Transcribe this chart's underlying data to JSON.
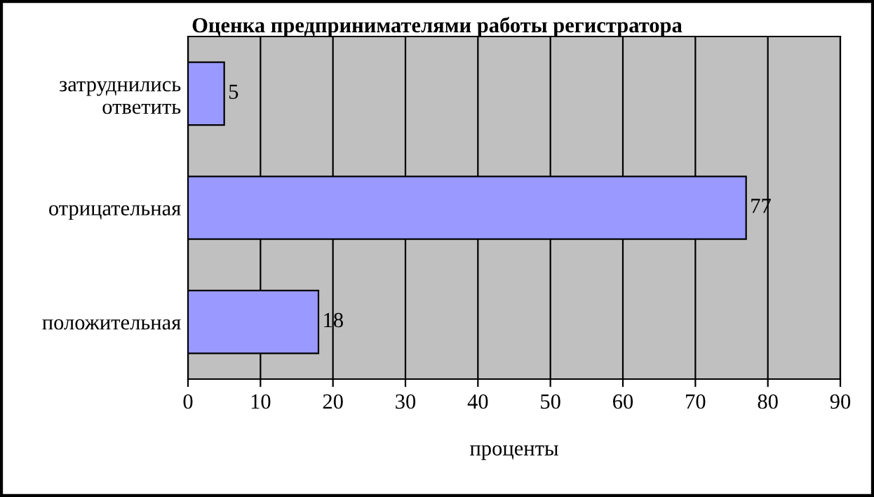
{
  "chart_data": {
    "type": "bar",
    "orientation": "horizontal",
    "title": "Оценка предпринимателями работы регистратора",
    "xlabel": "проценты",
    "categories": [
      "затруднились\nответить",
      "отрицательная",
      "положительная"
    ],
    "values": [
      5,
      77,
      18
    ],
    "color": "#9999ff",
    "data_labels": true,
    "xlim": [
      0,
      90
    ],
    "xticks": [
      0,
      10,
      20,
      30,
      40,
      50,
      60,
      70,
      80,
      90
    ],
    "grid": "x"
  }
}
